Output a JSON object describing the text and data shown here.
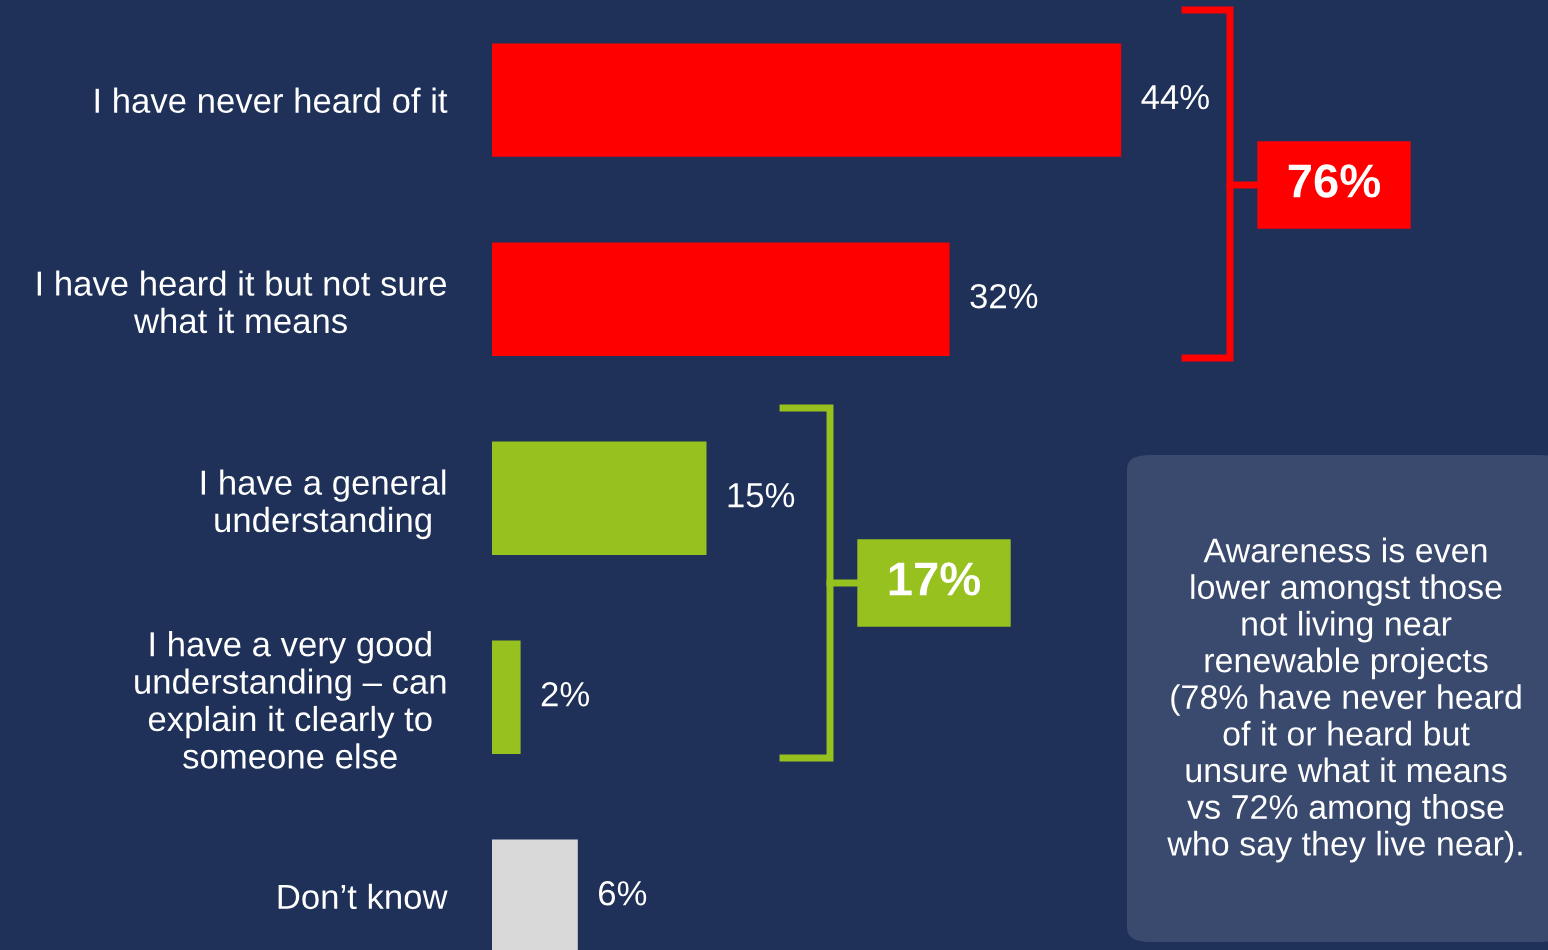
{
  "chart_data": {
    "type": "bar",
    "orientation": "horizontal",
    "categories": [
      "I have never heard of it",
      "I have heard it but not sure\nwhat it means",
      "I have a general\nunderstanding",
      "I have a very good\nunderstanding – can\nexplain it clearly to\nsomeone else",
      "Don’t know"
    ],
    "values": [
      44,
      32,
      15,
      2,
      6
    ],
    "colors": [
      "#ff0000",
      "#ff0000",
      "#97c11f",
      "#97c11f",
      "#d9d9d9"
    ],
    "value_labels": [
      "44%",
      "32%",
      "15%",
      "2%",
      "6%"
    ],
    "annotations": [
      "76%",
      "17%",
      "Awareness is even\nlower amongst those\nnot living near\nrenewable projects\n(78% have never heard\nof it or heard but\nunsure what it means\nvs 72% among those\nwho say they live near)."
    ]
  }
}
